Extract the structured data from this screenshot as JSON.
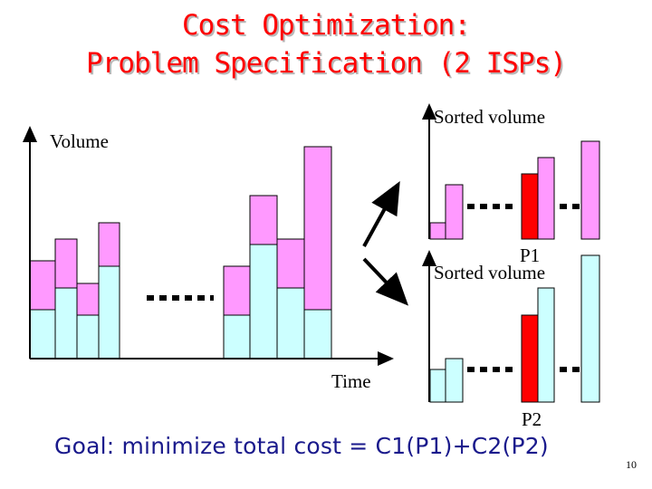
{
  "slide": {
    "title_line1": "Cost Optimization:",
    "title_line2": "Problem Specification (2 ISPs)",
    "goal": "Goal: minimize total cost = C1(P1)+C2(P2)",
    "page_number": "10"
  },
  "left_chart": {
    "y_axis_label": "Volume",
    "x_axis_label": "Time"
  },
  "top_right_chart": {
    "axis_label": "Sorted volume",
    "marker_label": "P1"
  },
  "bottom_right_chart": {
    "axis_label": "Sorted volume",
    "marker_label": "P2"
  },
  "colors": {
    "title": "#ff0000",
    "isp1_traffic": "#ff99ff",
    "isp2_traffic": "#ccffff",
    "percentile_marker": "#ff0000",
    "goal_text": "#1a1a8c"
  }
}
